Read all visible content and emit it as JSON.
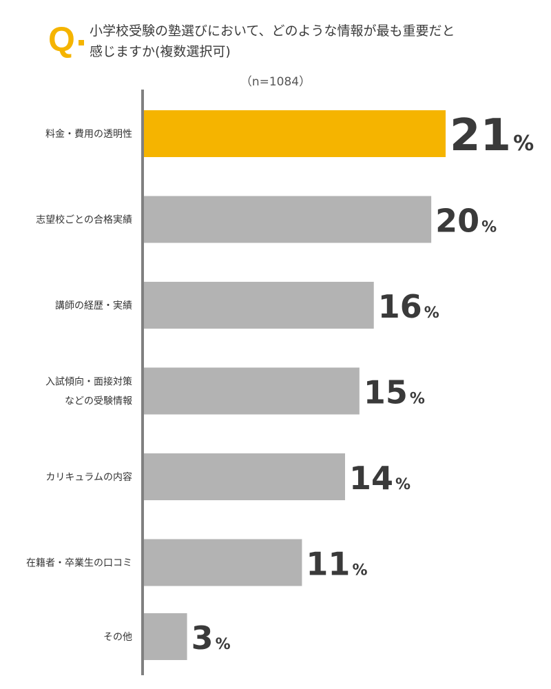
{
  "header": {
    "q_mark": "Q",
    "question_line1": "小学校受験の塾選びにおいて、どのような情報が最も重要だと",
    "question_line2": "感じますか(複数選択可)",
    "sample_size": "（n=1084）"
  },
  "colors": {
    "highlight": "#f5b400",
    "bar": "#b3b3b3",
    "axis": "#808080",
    "text": "#333333"
  },
  "chart_data": {
    "type": "bar",
    "orientation": "horizontal",
    "unit": "%",
    "categories": [
      [
        "料金・費用の透明性"
      ],
      [
        "志望校ごとの合格実績"
      ],
      [
        "講師の経歴・実績"
      ],
      [
        "入試傾向・面接対策",
        "などの受験情報"
      ],
      [
        "カリキュラムの内容"
      ],
      [
        "在籍者・卒業生の口コミ"
      ],
      [
        "その他"
      ]
    ],
    "values": [
      21,
      20,
      16,
      15,
      14,
      11,
      3
    ],
    "highlight_index": 0,
    "xlim": [
      0,
      21
    ],
    "grid": false
  }
}
